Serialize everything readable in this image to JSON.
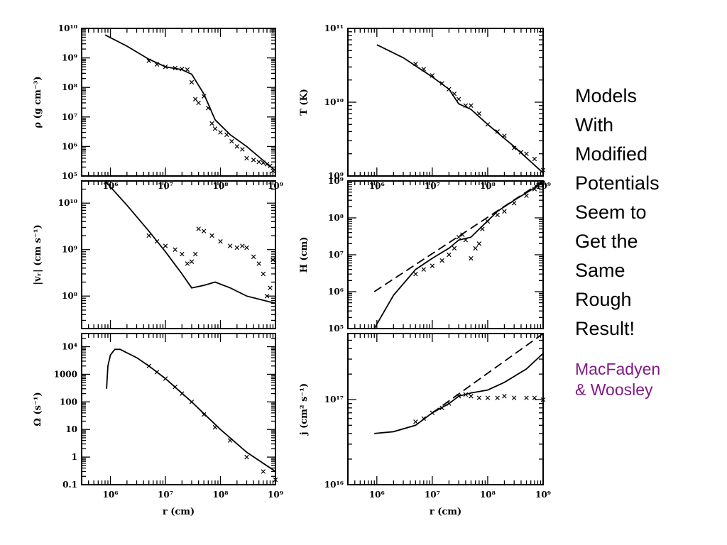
{
  "slide": {
    "headline_lines": [
      "Models",
      "With",
      "Modified",
      "Potentials",
      "Seem to",
      "Get the",
      "Same",
      "Rough",
      "Result!"
    ],
    "credit_lines": [
      "MacFadyen",
      "& Woosley"
    ],
    "credit_color": "#7f1a86"
  },
  "chart_data": [
    {
      "id": "rho",
      "type": "line",
      "ylabel": "ρ (g cm⁻³)",
      "xscale": "log",
      "yscale": "log",
      "xlim": [
        300000.0,
        1000000000.0
      ],
      "ylim": [
        100000.0,
        10000000000.0
      ],
      "x_ticks": [
        "10⁶",
        "10⁷",
        "10⁸",
        "10⁹"
      ],
      "y_ticks": [
        "10⁵",
        "10⁶",
        "10⁷",
        "10⁸",
        "10⁹",
        "10¹⁰"
      ],
      "series": [
        {
          "style": "solid",
          "x": [
            800000.0,
            2000000.0,
            5000000.0,
            10000000.0,
            20000000.0,
            30000000.0,
            50000000.0,
            80000000.0,
            150000000.0,
            300000000.0,
            1000000000.0
          ],
          "y": [
            6000000000.0,
            2500000000.0,
            900000000.0,
            500000000.0,
            400000000.0,
            280000000.0,
            60000000.0,
            8000000.0,
            2500000.0,
            1000000.0,
            150000.0
          ]
        },
        {
          "style": "markers",
          "x": [
            5000000.0,
            7000000.0,
            10000000.0,
            15000000.0,
            20000000.0,
            25000000.0,
            30000000.0,
            35000000.0,
            40000000.0,
            50000000.0,
            60000000.0,
            70000000.0,
            80000000.0,
            100000000.0,
            130000000.0,
            160000000.0,
            200000000.0,
            250000000.0,
            300000000.0,
            400000000.0,
            500000000.0,
            600000000.0,
            700000000.0,
            800000000.0,
            900000000.0
          ],
          "y": [
            800000000.0,
            600000000.0,
            500000000.0,
            450000000.0,
            420000000.0,
            400000000.0,
            150000000.0,
            40000000.0,
            30000000.0,
            50000000.0,
            20000000.0,
            6000000.0,
            4000000.0,
            3000000.0,
            2500000.0,
            1500000.0,
            1000000.0,
            800000.0,
            400000.0,
            350000.0,
            300000.0,
            280000.0,
            250000.0,
            220000.0,
            150000.0
          ]
        }
      ]
    },
    {
      "id": "T",
      "type": "line",
      "ylabel": "T (K)",
      "xscale": "log",
      "yscale": "log",
      "xlim": [
        300000.0,
        1000000000.0
      ],
      "ylim": [
        1000000000.0,
        100000000000.0
      ],
      "x_ticks": [
        "10⁶",
        "10⁷",
        "10⁸",
        "10⁹"
      ],
      "y_ticks": [
        "10⁹",
        "10¹⁰",
        "10¹¹"
      ],
      "series": [
        {
          "style": "solid",
          "x": [
            1000000.0,
            3000000.0,
            10000000.0,
            20000000.0,
            30000000.0,
            50000000.0,
            100000000.0,
            300000000.0,
            1000000000.0
          ],
          "y": [
            60000000000.0,
            40000000000.0,
            22000000000.0,
            15000000000.0,
            9500000000.0,
            8000000000.0,
            5000000000.0,
            2500000000.0,
            1100000000.0
          ]
        },
        {
          "style": "markers",
          "x": [
            5000000.0,
            7000000.0,
            10000000.0,
            15000000.0,
            20000000.0,
            25000000.0,
            30000000.0,
            40000000.0,
            50000000.0,
            70000000.0,
            100000000.0,
            150000000.0,
            200000000.0,
            300000000.0,
            400000000.0,
            500000000.0,
            700000000.0,
            1000000000.0
          ],
          "y": [
            33000000000.0,
            28000000000.0,
            23000000000.0,
            18000000000.0,
            15000000000.0,
            13000000000.0,
            11000000000.0,
            9000000000.0,
            9000000000.0,
            7000000000.0,
            5000000000.0,
            4000000000.0,
            3500000000.0,
            2400000000.0,
            2100000000.0,
            2000000000.0,
            1700000000.0,
            1200000000.0
          ]
        }
      ]
    },
    {
      "id": "vr",
      "type": "line",
      "ylabel": "|vᵣ| (cm s⁻¹)",
      "xscale": "log",
      "yscale": "log",
      "xlim": [
        300000.0,
        1000000000.0
      ],
      "ylim": [
        20000000.0,
        30000000000.0
      ],
      "x_ticks": [],
      "y_ticks": [
        "10⁸",
        "10⁹",
        "10¹⁰"
      ],
      "series": [
        {
          "style": "solid",
          "x": [
            800000.0,
            2000000.0,
            5000000.0,
            10000000.0,
            20000000.0,
            30000000.0,
            50000000.0,
            80000000.0,
            150000000.0,
            300000000.0,
            1000000000.0
          ],
          "y": [
            30000000000.0,
            9000000000.0,
            2500000000.0,
            900000000.0,
            300000000.0,
            150000000.0,
            170000000.0,
            200000000.0,
            150000000.0,
            100000000.0,
            70000000.0
          ]
        },
        {
          "style": "markers",
          "x": [
            5000000.0,
            7000000.0,
            10000000.0,
            15000000.0,
            20000000.0,
            25000000.0,
            30000000.0,
            35000000.0,
            40000000.0,
            50000000.0,
            70000000.0,
            100000000.0,
            150000000.0,
            200000000.0,
            250000000.0,
            300000000.0,
            400000000.0,
            500000000.0,
            600000000.0,
            700000000.0,
            800000000.0,
            900000000.0
          ],
          "y": [
            2000000000.0,
            1500000000.0,
            1200000000.0,
            1000000000.0,
            800000000.0,
            500000000.0,
            550000000.0,
            800000000.0,
            2800000000.0,
            2500000000.0,
            2000000000.0,
            1500000000.0,
            1200000000.0,
            1100000000.0,
            1200000000.0,
            1100000000.0,
            700000000.0,
            500000000.0,
            300000000.0,
            100000000.0,
            150000000.0,
            600000000.0
          ]
        }
      ]
    },
    {
      "id": "H",
      "type": "line",
      "ylabel": "H (cm)",
      "xscale": "log",
      "yscale": "log",
      "xlim": [
        300000.0,
        1000000000.0
      ],
      "ylim": [
        100000.0,
        1000000000.0
      ],
      "x_ticks": [],
      "y_ticks": [
        "10⁵",
        "10⁶",
        "10⁷",
        "10⁸",
        "10⁹"
      ],
      "series": [
        {
          "style": "solid",
          "x": [
            900000.0,
            2000000.0,
            5000000.0,
            10000000.0,
            20000000.0,
            30000000.0,
            50000000.0,
            80000000.0,
            150000000.0,
            300000000.0,
            1000000000.0
          ],
          "y": [
            100000.0,
            800000.0,
            4000000.0,
            8000000.0,
            15000000.0,
            25000000.0,
            30000000.0,
            60000000.0,
            150000000.0,
            300000000.0,
            900000000.0
          ]
        },
        {
          "style": "dashed",
          "x": [
            900000.0,
            1000000000.0
          ],
          "y": [
            1000000.0,
            1000000000.0
          ]
        },
        {
          "style": "markers",
          "x": [
            5000000.0,
            7000000.0,
            10000000.0,
            15000000.0,
            20000000.0,
            25000000.0,
            30000000.0,
            35000000.0,
            40000000.0,
            50000000.0,
            60000000.0,
            70000000.0,
            80000000.0,
            100000000.0,
            150000000.0,
            200000000.0,
            300000000.0,
            500000000.0,
            700000000.0,
            1000000000.0
          ],
          "y": [
            3000000.0,
            4000000.0,
            5000000.0,
            7000000.0,
            10000000.0,
            15000000.0,
            30000000.0,
            35000000.0,
            25000000.0,
            8000000.0,
            15000000.0,
            20000000.0,
            50000000.0,
            80000000.0,
            120000000.0,
            150000000.0,
            250000000.0,
            400000000.0,
            600000000.0,
            900000000.0
          ]
        }
      ]
    },
    {
      "id": "Omega",
      "type": "line",
      "ylabel": "Ω (s⁻¹)",
      "xscale": "log",
      "yscale": "log",
      "xlim": [
        300000.0,
        1000000000.0
      ],
      "ylim": [
        0.1,
        30000.0
      ],
      "x_ticks": [
        "10⁶",
        "10⁷",
        "10⁸",
        "10⁹"
      ],
      "xlabel": "r (cm)",
      "y_ticks": [
        "0.1",
        "1",
        "10",
        "100",
        "1000",
        "10⁴"
      ],
      "series": [
        {
          "style": "solid",
          "x": [
            850000.0,
            900000.0,
            1000000.0,
            1200000.0,
            1500000.0,
            2000000.0,
            3000000.0,
            5000000.0,
            10000000.0,
            30000000.0,
            100000000.0,
            300000000.0,
            1000000000.0
          ],
          "y": [
            300,
            2000,
            5000,
            8000,
            8000,
            6000,
            4000,
            2000,
            700,
            100,
            10,
            1.5,
            0.3
          ]
        },
        {
          "style": "markers",
          "x": [
            5000000.0,
            7000000.0,
            10000000.0,
            15000000.0,
            20000000.0,
            30000000.0,
            50000000.0,
            80000000.0,
            150000000.0,
            300000000.0,
            600000000.0,
            1000000000.0
          ],
          "y": [
            2000,
            1200,
            700,
            350,
            200,
            100,
            35,
            12,
            4,
            1,
            0.3,
            0.15
          ]
        }
      ]
    },
    {
      "id": "j",
      "type": "line",
      "ylabel": "j (cm² s⁻¹)",
      "xscale": "log",
      "yscale": "log",
      "xlim": [
        300000.0,
        1000000000.0
      ],
      "ylim": [
        1e+16,
        6e+17
      ],
      "x_ticks": [
        "10⁶",
        "10⁷",
        "10⁸",
        "10⁹"
      ],
      "xlabel": "r (cm)",
      "y_ticks": [
        "10¹⁶",
        "10¹⁷"
      ],
      "series": [
        {
          "style": "solid",
          "x": [
            900000.0,
            2000000.0,
            5000000.0,
            10000000.0,
            20000000.0,
            30000000.0,
            50000000.0,
            100000000.0,
            200000000.0,
            500000000.0,
            1000000000.0
          ],
          "y": [
            4e+16,
            4.2e+16,
            5e+16,
            7e+16,
            9e+16,
            1.1e+17,
            1.2e+17,
            1.3e+17,
            1.6e+17,
            2.3e+17,
            3.5e+17
          ]
        },
        {
          "style": "dashed",
          "x": [
            10000000.0,
            1000000000.0
          ],
          "y": [
            7e+16,
            6e+17
          ]
        },
        {
          "style": "markers",
          "x": [
            5000000.0,
            7000000.0,
            10000000.0,
            15000000.0,
            20000000.0,
            30000000.0,
            40000000.0,
            50000000.0,
            70000000.0,
            100000000.0,
            150000000.0,
            200000000.0,
            300000000.0,
            500000000.0,
            700000000.0,
            1000000000.0
          ],
          "y": [
            5.5e+16,
            6e+16,
            7e+16,
            8e+16,
            9e+16,
            1.1e+17,
            1.15e+17,
            1.1e+17,
            1.05e+17,
            1.05e+17,
            1.05e+17,
            1.1e+17,
            1.05e+17,
            1.05e+17,
            1.05e+17,
            1e+17
          ]
        }
      ]
    }
  ]
}
